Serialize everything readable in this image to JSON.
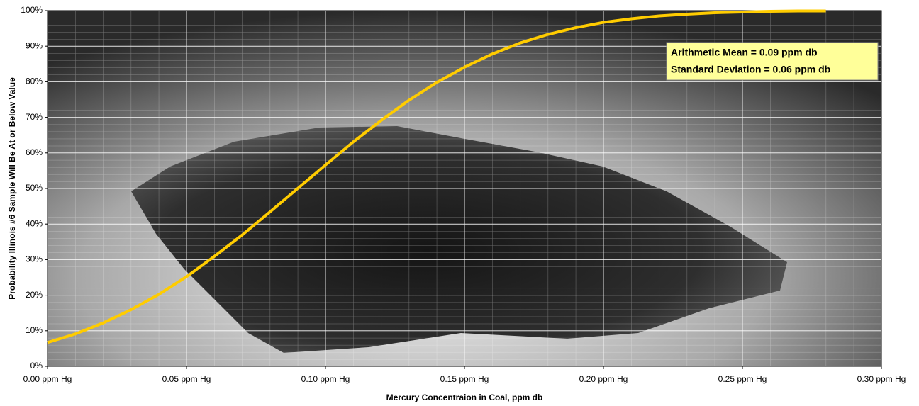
{
  "chart_data": {
    "type": "line",
    "xlabel": "Mercury Concentraion in Coal, ppm db",
    "ylabel": "Probability Illinois #6 Sample Will Be At or Below Value",
    "annotations": [
      "Arithmetic Mean = 0.09 ppm db",
      "Standard Deviation = 0.06 ppm db"
    ],
    "x": [
      0,
      0.01,
      0.02,
      0.03,
      0.04,
      0.05,
      0.06,
      0.07,
      0.08,
      0.09,
      0.1,
      0.11,
      0.12,
      0.13,
      0.14,
      0.15,
      0.16,
      0.17,
      0.18,
      0.19,
      0.2,
      0.21,
      0.22,
      0.23,
      0.24,
      0.25,
      0.26,
      0.27,
      0.28
    ],
    "values": [
      6.7,
      9.1,
      12.2,
      15.9,
      20.2,
      25.2,
      30.9,
      36.9,
      43.4,
      50,
      56.6,
      63.1,
      69.1,
      74.8,
      79.8,
      84.1,
      87.8,
      90.9,
      93.3,
      95.2,
      96.7,
      97.7,
      98.5,
      99.0,
      99.4,
      99.6,
      99.8,
      99.9,
      99.9
    ],
    "color": "#ffcc00",
    "xlim": [
      0,
      0.3
    ],
    "ylim": [
      0,
      100
    ],
    "xticks": [
      {
        "value": 0,
        "label": "0.00 ppm Hg"
      },
      {
        "value": 0.05,
        "label": "0.05 ppm Hg"
      },
      {
        "value": 0.1,
        "label": "0.10 ppm Hg"
      },
      {
        "value": 0.15,
        "label": "0.15 ppm Hg"
      },
      {
        "value": 0.2,
        "label": "0.20 ppm Hg"
      },
      {
        "value": 0.25,
        "label": "0.25 ppm Hg"
      },
      {
        "value": 0.3,
        "label": "0.30 ppm Hg"
      }
    ],
    "yticks": [
      {
        "value": 0,
        "label": "0%"
      },
      {
        "value": 10,
        "label": "10%"
      },
      {
        "value": 20,
        "label": "20%"
      },
      {
        "value": 30,
        "label": "30%"
      },
      {
        "value": 40,
        "label": "40%"
      },
      {
        "value": 50,
        "label": "50%"
      },
      {
        "value": 60,
        "label": "60%"
      },
      {
        "value": 70,
        "label": "70%"
      },
      {
        "value": 80,
        "label": "80%"
      },
      {
        "value": 90,
        "label": "90%"
      },
      {
        "value": 100,
        "label": "100%"
      }
    ],
    "grid": true
  }
}
